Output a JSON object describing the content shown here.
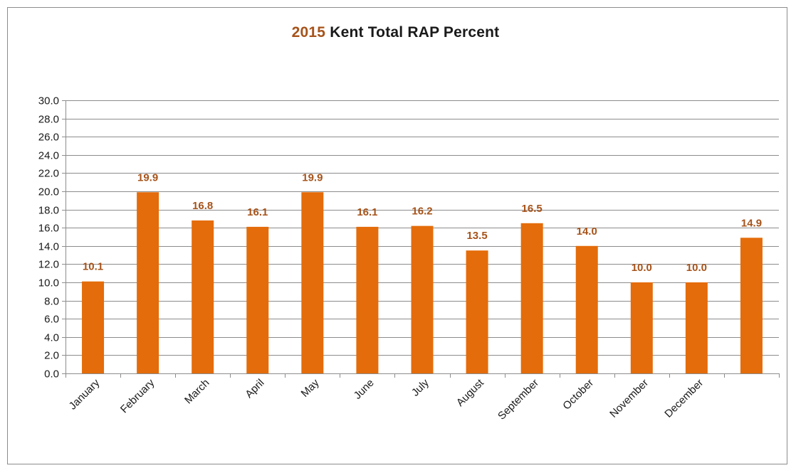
{
  "chart_data": {
    "type": "bar",
    "title_year": "2015",
    "title_rest": "Kent Total RAP Percent",
    "categories": [
      "January",
      "February",
      "March",
      "April",
      "May",
      "June",
      "July",
      "August",
      "September",
      "October",
      "November",
      "December",
      ""
    ],
    "values": [
      10.1,
      19.9,
      16.8,
      16.1,
      19.9,
      16.1,
      16.2,
      13.5,
      16.5,
      14.0,
      10.0,
      10.0,
      14.9
    ],
    "value_labels": [
      "10.1",
      "19.9",
      "16.8",
      "16.1",
      "19.9",
      "16.1",
      "16.2",
      "13.5",
      "16.5",
      "14.0",
      "10.0",
      "10.0",
      "14.9"
    ],
    "ylim": [
      0,
      30
    ],
    "ytick_step": 2,
    "ytick_labels": [
      "0.0",
      "2.0",
      "4.0",
      "6.0",
      "8.0",
      "10.0",
      "12.0",
      "14.0",
      "16.0",
      "18.0",
      "20.0",
      "22.0",
      "24.0",
      "26.0",
      "28.0",
      "30.0"
    ],
    "grid": true,
    "legend": "none",
    "colors": {
      "bar": "#e46c0a",
      "label": "#a6531a",
      "grid": "#8c8c8c",
      "title_year": "#a6531a"
    }
  }
}
